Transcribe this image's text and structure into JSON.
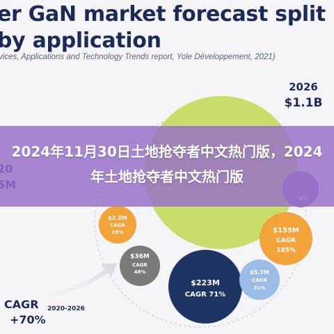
{
  "page": {
    "title_lines": [
      "er GaN market forecast split",
      "by application"
    ],
    "source": "vices, Applications and Technology Trends report, Yole Développement, 2021)",
    "total_year": "2026",
    "total_value": "$1.1B",
    "left_edge_labels": [
      "20",
      "5M"
    ],
    "cagr_label": "CAGR",
    "cagr_period": "2020-2026",
    "cagr_value": "+70%",
    "banner_text": "2024年11月30日土地抢夺者中文热门版，2024年土地抢夺者中文热门版"
  },
  "colors": {
    "title": "#1c2a57",
    "big_bubble": "#c9dd6a",
    "orange": "#f2a33a",
    "grey": "#7a7a7a",
    "navy": "#1e3563",
    "light_blue": "#9bbce6",
    "purple_small": "#9c7bc4",
    "banner": "#966ec8"
  },
  "chart_data": {
    "type": "bubble",
    "series": [
      {
        "value": "$223M",
        "cagr": "CAGR 71%",
        "color": "#1e3563"
      },
      {
        "value": "$155M",
        "cagr": "CAGR 185%",
        "color": "#f2a33a"
      },
      {
        "value": "$36M",
        "cagr": "CAGR 48%",
        "color": "#7a7a7a"
      },
      {
        "value": "$2.2M",
        "cagr": "CAGR 28%",
        "color": "#f2a33a"
      },
      {
        "value": "$5.7M",
        "cagr": "CAGR 31%",
        "color": "#9bbce6"
      },
      {
        "value": "",
        "cagr": "4%",
        "color": "#9c7bc4"
      },
      {
        "value": "",
        "cagr": "",
        "color": "#c9dd6a"
      }
    ]
  }
}
